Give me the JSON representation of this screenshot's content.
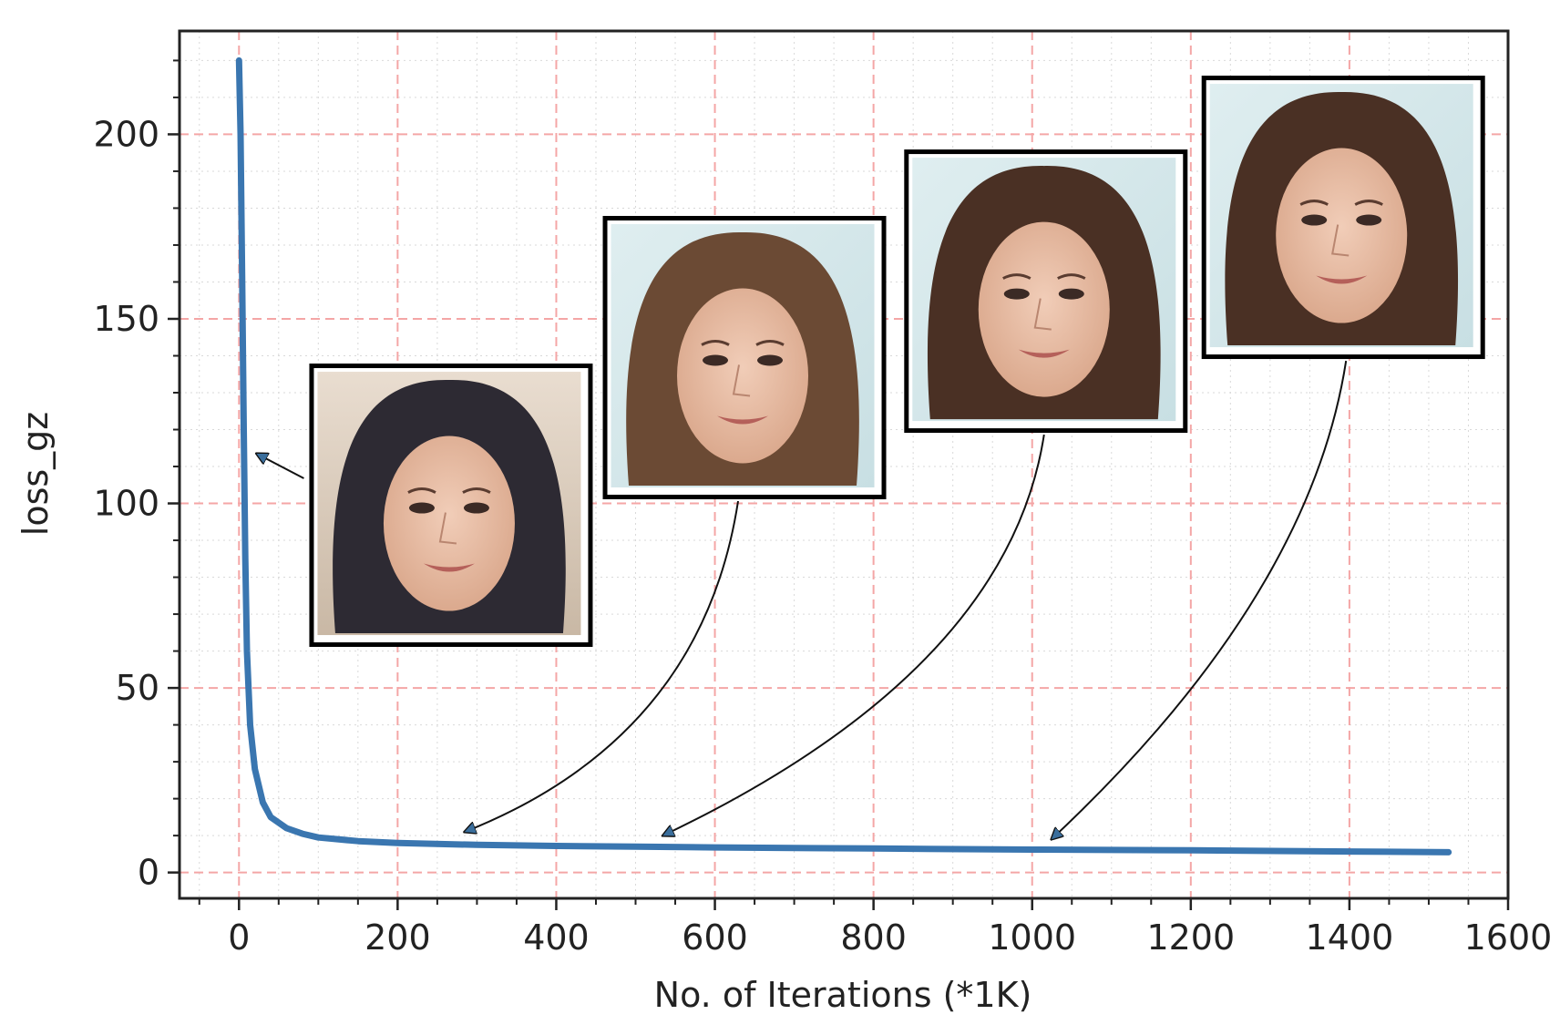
{
  "chart_data": {
    "type": "line",
    "title": "",
    "xlabel": "No. of Iterations (*1K)",
    "ylabel": "loss_gz",
    "xlim": [
      -75,
      1600
    ],
    "ylim": [
      -7,
      228
    ],
    "xticks": [
      0,
      200,
      400,
      600,
      800,
      1000,
      1200,
      1400,
      1600
    ],
    "yticks": [
      0,
      50,
      100,
      150,
      200
    ],
    "grid": true,
    "grid_style": "major dashed red, minor dotted grey",
    "series": [
      {
        "color": "#3a76b0",
        "x": [
          0,
          2,
          4,
          6,
          8,
          10,
          14,
          20,
          30,
          40,
          60,
          80,
          100,
          150,
          200,
          300,
          400,
          500,
          600,
          800,
          1000,
          1200,
          1400,
          1525
        ],
        "y": [
          220,
          200,
          160,
          120,
          85,
          60,
          40,
          28,
          19,
          15,
          12,
          10.5,
          9.5,
          8.5,
          8,
          7.5,
          7.2,
          7,
          6.8,
          6.5,
          6.2,
          6,
          5.7,
          5.5
        ]
      }
    ],
    "annotations": [
      {
        "label": "generated face sample",
        "point": [
          15,
          115
        ],
        "image_center": [
          265,
          100
        ]
      },
      {
        "label": "generated face sample",
        "point": [
          275,
          9
        ],
        "image_center": [
          635,
          140
        ]
      },
      {
        "label": "generated face sample",
        "point": [
          525,
          8
        ],
        "image_center": [
          1015,
          158
        ]
      },
      {
        "label": "generated face sample",
        "point": [
          1015,
          7
        ],
        "image_center": [
          1390,
          178
        ]
      }
    ]
  },
  "icons": {
    "face_thumbnail": "face-portrait-icon"
  },
  "colors": {
    "line": "#3a76b0",
    "major_grid": "#f4a6a6",
    "minor_grid": "#d9d9d9",
    "frame": "#222222"
  }
}
